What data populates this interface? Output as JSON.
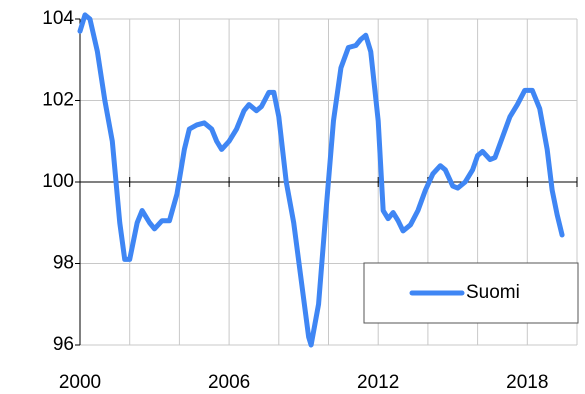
{
  "chart_data": {
    "type": "line",
    "x": [
      2000.0,
      2000.2,
      2000.4,
      2000.7,
      2001.0,
      2001.3,
      2001.6,
      2001.8,
      2002.0,
      2002.3,
      2002.5,
      2002.8,
      2003.0,
      2003.3,
      2003.6,
      2003.9,
      2004.2,
      2004.4,
      2004.7,
      2005.0,
      2005.3,
      2005.5,
      2005.7,
      2006.0,
      2006.3,
      2006.6,
      2006.8,
      2007.1,
      2007.3,
      2007.6,
      2007.8,
      2008.0,
      2008.3,
      2008.6,
      2008.9,
      2009.2,
      2009.3,
      2009.6,
      2009.9,
      2010.2,
      2010.5,
      2010.8,
      2011.1,
      2011.3,
      2011.5,
      2011.7,
      2012.0,
      2012.2,
      2012.4,
      2012.6,
      2012.8,
      2013.0,
      2013.3,
      2013.6,
      2013.9,
      2014.2,
      2014.5,
      2014.7,
      2015.0,
      2015.2,
      2015.5,
      2015.8,
      2016.0,
      2016.2,
      2016.5,
      2016.7,
      2017.0,
      2017.3,
      2017.6,
      2017.9,
      2018.2,
      2018.5,
      2018.8,
      2019.0,
      2019.2,
      2019.4
    ],
    "series": [
      {
        "name": "Suomi",
        "color": "#3f86f4",
        "values": [
          103.7,
          104.1,
          104.0,
          103.2,
          102.0,
          101.0,
          99.0,
          98.1,
          98.1,
          99.0,
          99.3,
          99.0,
          98.85,
          99.05,
          99.05,
          99.7,
          100.8,
          101.3,
          101.4,
          101.45,
          101.3,
          101.0,
          100.8,
          101.0,
          101.3,
          101.75,
          101.9,
          101.75,
          101.85,
          102.2,
          102.2,
          101.6,
          100.0,
          99.0,
          97.6,
          96.2,
          96.0,
          97.0,
          99.3,
          101.5,
          102.8,
          103.3,
          103.35,
          103.5,
          103.6,
          103.2,
          101.5,
          99.3,
          99.1,
          99.25,
          99.05,
          98.8,
          98.95,
          99.3,
          99.8,
          100.2,
          100.4,
          100.3,
          99.9,
          99.85,
          100.0,
          100.3,
          100.65,
          100.75,
          100.55,
          100.6,
          101.1,
          101.6,
          101.9,
          102.25,
          102.25,
          101.8,
          100.8,
          99.8,
          99.2,
          98.7
        ]
      }
    ],
    "xlim": [
      2000,
      2020
    ],
    "xticks": [
      2000,
      2006,
      2012,
      2018
    ],
    "ylim": [
      96,
      104
    ],
    "yticks": [
      96,
      98,
      100,
      102,
      104
    ],
    "axis_crossing": 100,
    "grid": true,
    "legend_position": "lower right"
  }
}
